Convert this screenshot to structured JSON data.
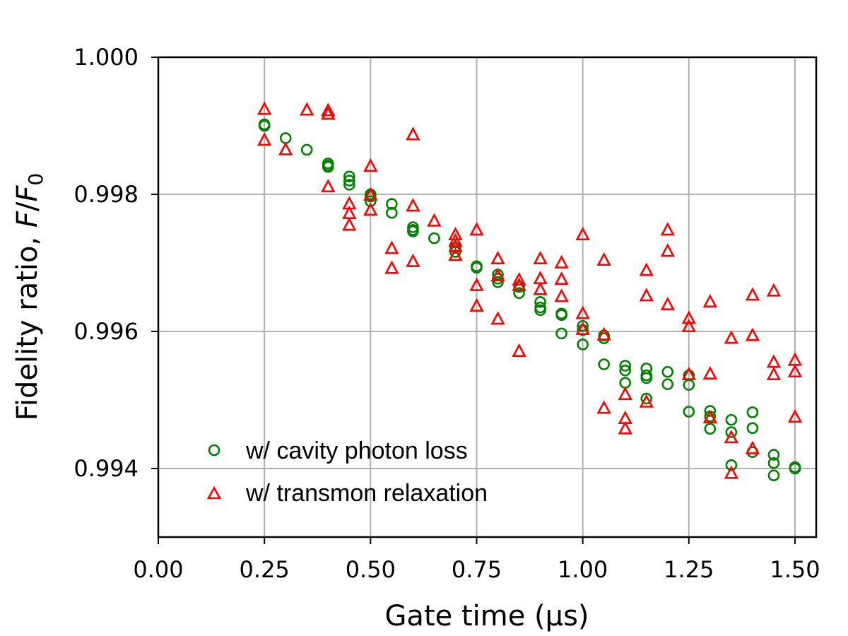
{
  "chart_data": {
    "type": "scatter",
    "xlabel": "Gate time (μs)",
    "ylabel_prefix": "Fidelity ratio, ",
    "ylabel_math": "F",
    "ylabel_sep": "/",
    "ylabel_math2": "F",
    "ylabel_sub": "0",
    "xlim": [
      0.0,
      1.55
    ],
    "ylim": [
      0.993,
      1.0
    ],
    "xticks": [
      "0.00",
      "0.25",
      "0.50",
      "0.75",
      "1.00",
      "1.25",
      "1.50"
    ],
    "xtick_values": [
      0.0,
      0.25,
      0.5,
      0.75,
      1.0,
      1.25,
      1.5
    ],
    "yticks": [
      "0.994",
      "0.996",
      "0.998",
      "1.000"
    ],
    "ytick_values": [
      0.994,
      0.996,
      0.998,
      1.0
    ],
    "grid": true,
    "legend_position": "lower-left",
    "series": [
      {
        "name": "w/ cavity photon loss",
        "marker": "circle",
        "color": "#008000",
        "points": [
          [
            0.25,
            0.99902
          ],
          [
            0.25,
            0.999
          ],
          [
            0.3,
            0.99882
          ],
          [
            0.35,
            0.99865
          ],
          [
            0.4,
            0.99845
          ],
          [
            0.4,
            0.99842
          ],
          [
            0.4,
            0.9984
          ],
          [
            0.45,
            0.99826
          ],
          [
            0.45,
            0.9982
          ],
          [
            0.45,
            0.99814
          ],
          [
            0.5,
            0.998
          ],
          [
            0.5,
            0.99797
          ],
          [
            0.5,
            0.9979
          ],
          [
            0.55,
            0.99786
          ],
          [
            0.55,
            0.99773
          ],
          [
            0.6,
            0.99752
          ],
          [
            0.6,
            0.99748
          ],
          [
            0.6,
            0.99746
          ],
          [
            0.65,
            0.99736
          ],
          [
            0.7,
            0.99722
          ],
          [
            0.7,
            0.99716
          ],
          [
            0.75,
            0.99695
          ],
          [
            0.75,
            0.99693
          ],
          [
            0.8,
            0.99683
          ],
          [
            0.8,
            0.99677
          ],
          [
            0.8,
            0.99672
          ],
          [
            0.85,
            0.99665
          ],
          [
            0.85,
            0.99656
          ],
          [
            0.9,
            0.99643
          ],
          [
            0.9,
            0.99635
          ],
          [
            0.9,
            0.99631
          ],
          [
            0.95,
            0.99626
          ],
          [
            0.95,
            0.99624
          ],
          [
            0.95,
            0.99597
          ],
          [
            1.0,
            0.99608
          ],
          [
            1.0,
            0.99602
          ],
          [
            1.0,
            0.99581
          ],
          [
            1.05,
            0.99594
          ],
          [
            1.05,
            0.9959
          ],
          [
            1.05,
            0.99552
          ],
          [
            1.1,
            0.9955
          ],
          [
            1.1,
            0.99543
          ],
          [
            1.1,
            0.99525
          ],
          [
            1.15,
            0.99546
          ],
          [
            1.15,
            0.99536
          ],
          [
            1.15,
            0.99532
          ],
          [
            1.15,
            0.99502
          ],
          [
            1.2,
            0.99541
          ],
          [
            1.2,
            0.99523
          ],
          [
            1.25,
            0.99536
          ],
          [
            1.25,
            0.99522
          ],
          [
            1.25,
            0.99483
          ],
          [
            1.3,
            0.99484
          ],
          [
            1.3,
            0.99476
          ],
          [
            1.3,
            0.99458
          ],
          [
            1.35,
            0.99471
          ],
          [
            1.35,
            0.99453
          ],
          [
            1.35,
            0.99405
          ],
          [
            1.4,
            0.99482
          ],
          [
            1.4,
            0.99459
          ],
          [
            1.4,
            0.99424
          ],
          [
            1.45,
            0.9942
          ],
          [
            1.45,
            0.99408
          ],
          [
            1.45,
            0.9939
          ],
          [
            1.5,
            0.99402
          ],
          [
            1.5,
            0.994
          ]
        ]
      },
      {
        "name": "w/ transmon relaxation",
        "marker": "triangle",
        "color": "#ff0000",
        "points": [
          [
            0.25,
            0.99925
          ],
          [
            0.25,
            0.9988
          ],
          [
            0.3,
            0.99866
          ],
          [
            0.35,
            0.99924
          ],
          [
            0.4,
            0.99923
          ],
          [
            0.4,
            0.99918
          ],
          [
            0.4,
            0.99812
          ],
          [
            0.45,
            0.99787
          ],
          [
            0.45,
            0.99773
          ],
          [
            0.45,
            0.99756
          ],
          [
            0.5,
            0.99842
          ],
          [
            0.5,
            0.998
          ],
          [
            0.5,
            0.99778
          ],
          [
            0.55,
            0.99722
          ],
          [
            0.55,
            0.99693
          ],
          [
            0.6,
            0.99888
          ],
          [
            0.6,
            0.99784
          ],
          [
            0.6,
            0.99703
          ],
          [
            0.65,
            0.99762
          ],
          [
            0.7,
            0.99742
          ],
          [
            0.7,
            0.99733
          ],
          [
            0.7,
            0.99725
          ],
          [
            0.7,
            0.99712
          ],
          [
            0.75,
            0.99749
          ],
          [
            0.75,
            0.99668
          ],
          [
            0.75,
            0.99638
          ],
          [
            0.8,
            0.99707
          ],
          [
            0.8,
            0.99682
          ],
          [
            0.8,
            0.99619
          ],
          [
            0.85,
            0.99676
          ],
          [
            0.85,
            0.99668
          ],
          [
            0.85,
            0.99572
          ],
          [
            0.9,
            0.99707
          ],
          [
            0.9,
            0.99678
          ],
          [
            0.9,
            0.99662
          ],
          [
            0.95,
            0.99701
          ],
          [
            0.95,
            0.99677
          ],
          [
            0.95,
            0.99652
          ],
          [
            1.0,
            0.99742
          ],
          [
            1.0,
            0.99627
          ],
          [
            1.0,
            0.99604
          ],
          [
            1.05,
            0.99705
          ],
          [
            1.05,
            0.99596
          ],
          [
            1.05,
            0.99489
          ],
          [
            1.1,
            0.99509
          ],
          [
            1.1,
            0.99474
          ],
          [
            1.1,
            0.99459
          ],
          [
            1.15,
            0.9969
          ],
          [
            1.15,
            0.99653
          ],
          [
            1.15,
            0.99498
          ],
          [
            1.2,
            0.99749
          ],
          [
            1.2,
            0.99718
          ],
          [
            1.2,
            0.9964
          ],
          [
            1.25,
            0.9962
          ],
          [
            1.25,
            0.99608
          ],
          [
            1.25,
            0.99538
          ],
          [
            1.3,
            0.99644
          ],
          [
            1.3,
            0.99539
          ],
          [
            1.3,
            0.99475
          ],
          [
            1.35,
            0.99591
          ],
          [
            1.35,
            0.99446
          ],
          [
            1.35,
            0.99394
          ],
          [
            1.4,
            0.99654
          ],
          [
            1.4,
            0.99595
          ],
          [
            1.4,
            0.9943
          ],
          [
            1.45,
            0.9966
          ],
          [
            1.45,
            0.99556
          ],
          [
            1.45,
            0.99538
          ],
          [
            1.5,
            0.99559
          ],
          [
            1.5,
            0.99542
          ],
          [
            1.5,
            0.99476
          ]
        ]
      }
    ]
  }
}
